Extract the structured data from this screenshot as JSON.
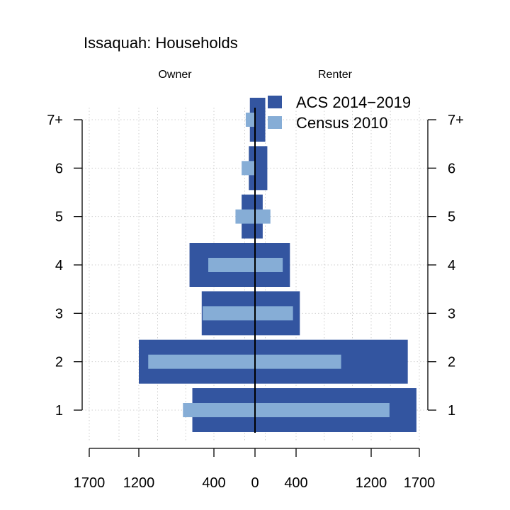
{
  "chart_data": {
    "type": "bar",
    "orientation": "horizontal",
    "layout": "population-pyramid",
    "title": "Issaquah: Households",
    "left_label": "Owner",
    "right_label": "Renter",
    "categories": [
      "1",
      "2",
      "3",
      "4",
      "5",
      "6",
      "7+"
    ],
    "x_ticks": [
      {
        "value": -1700,
        "label": "1700"
      },
      {
        "value": -1200,
        "label": "1200"
      },
      {
        "value": -400,
        "label": "400"
      },
      {
        "value": 0,
        "label": "0"
      },
      {
        "value": 400,
        "label": "400"
      },
      {
        "value": 1200,
        "label": "1200"
      },
      {
        "value": 1700,
        "label": "1700"
      }
    ],
    "xlim": [
      -1700,
      1700
    ],
    "grid": true,
    "legend_position": "top-right",
    "series": [
      {
        "name": "ACS 2014−2019",
        "color": "#3355A0",
        "owner": [
          630,
          1200,
          530,
          660,
          130,
          60,
          50
        ],
        "renter": [
          1670,
          1580,
          440,
          340,
          75,
          120,
          100
        ]
      },
      {
        "name": "Census 2010",
        "color": "#86ADD6",
        "owner": [
          730,
          1100,
          520,
          460,
          190,
          130,
          90
        ],
        "renter": [
          1390,
          880,
          370,
          270,
          150,
          0,
          0
        ]
      }
    ]
  }
}
